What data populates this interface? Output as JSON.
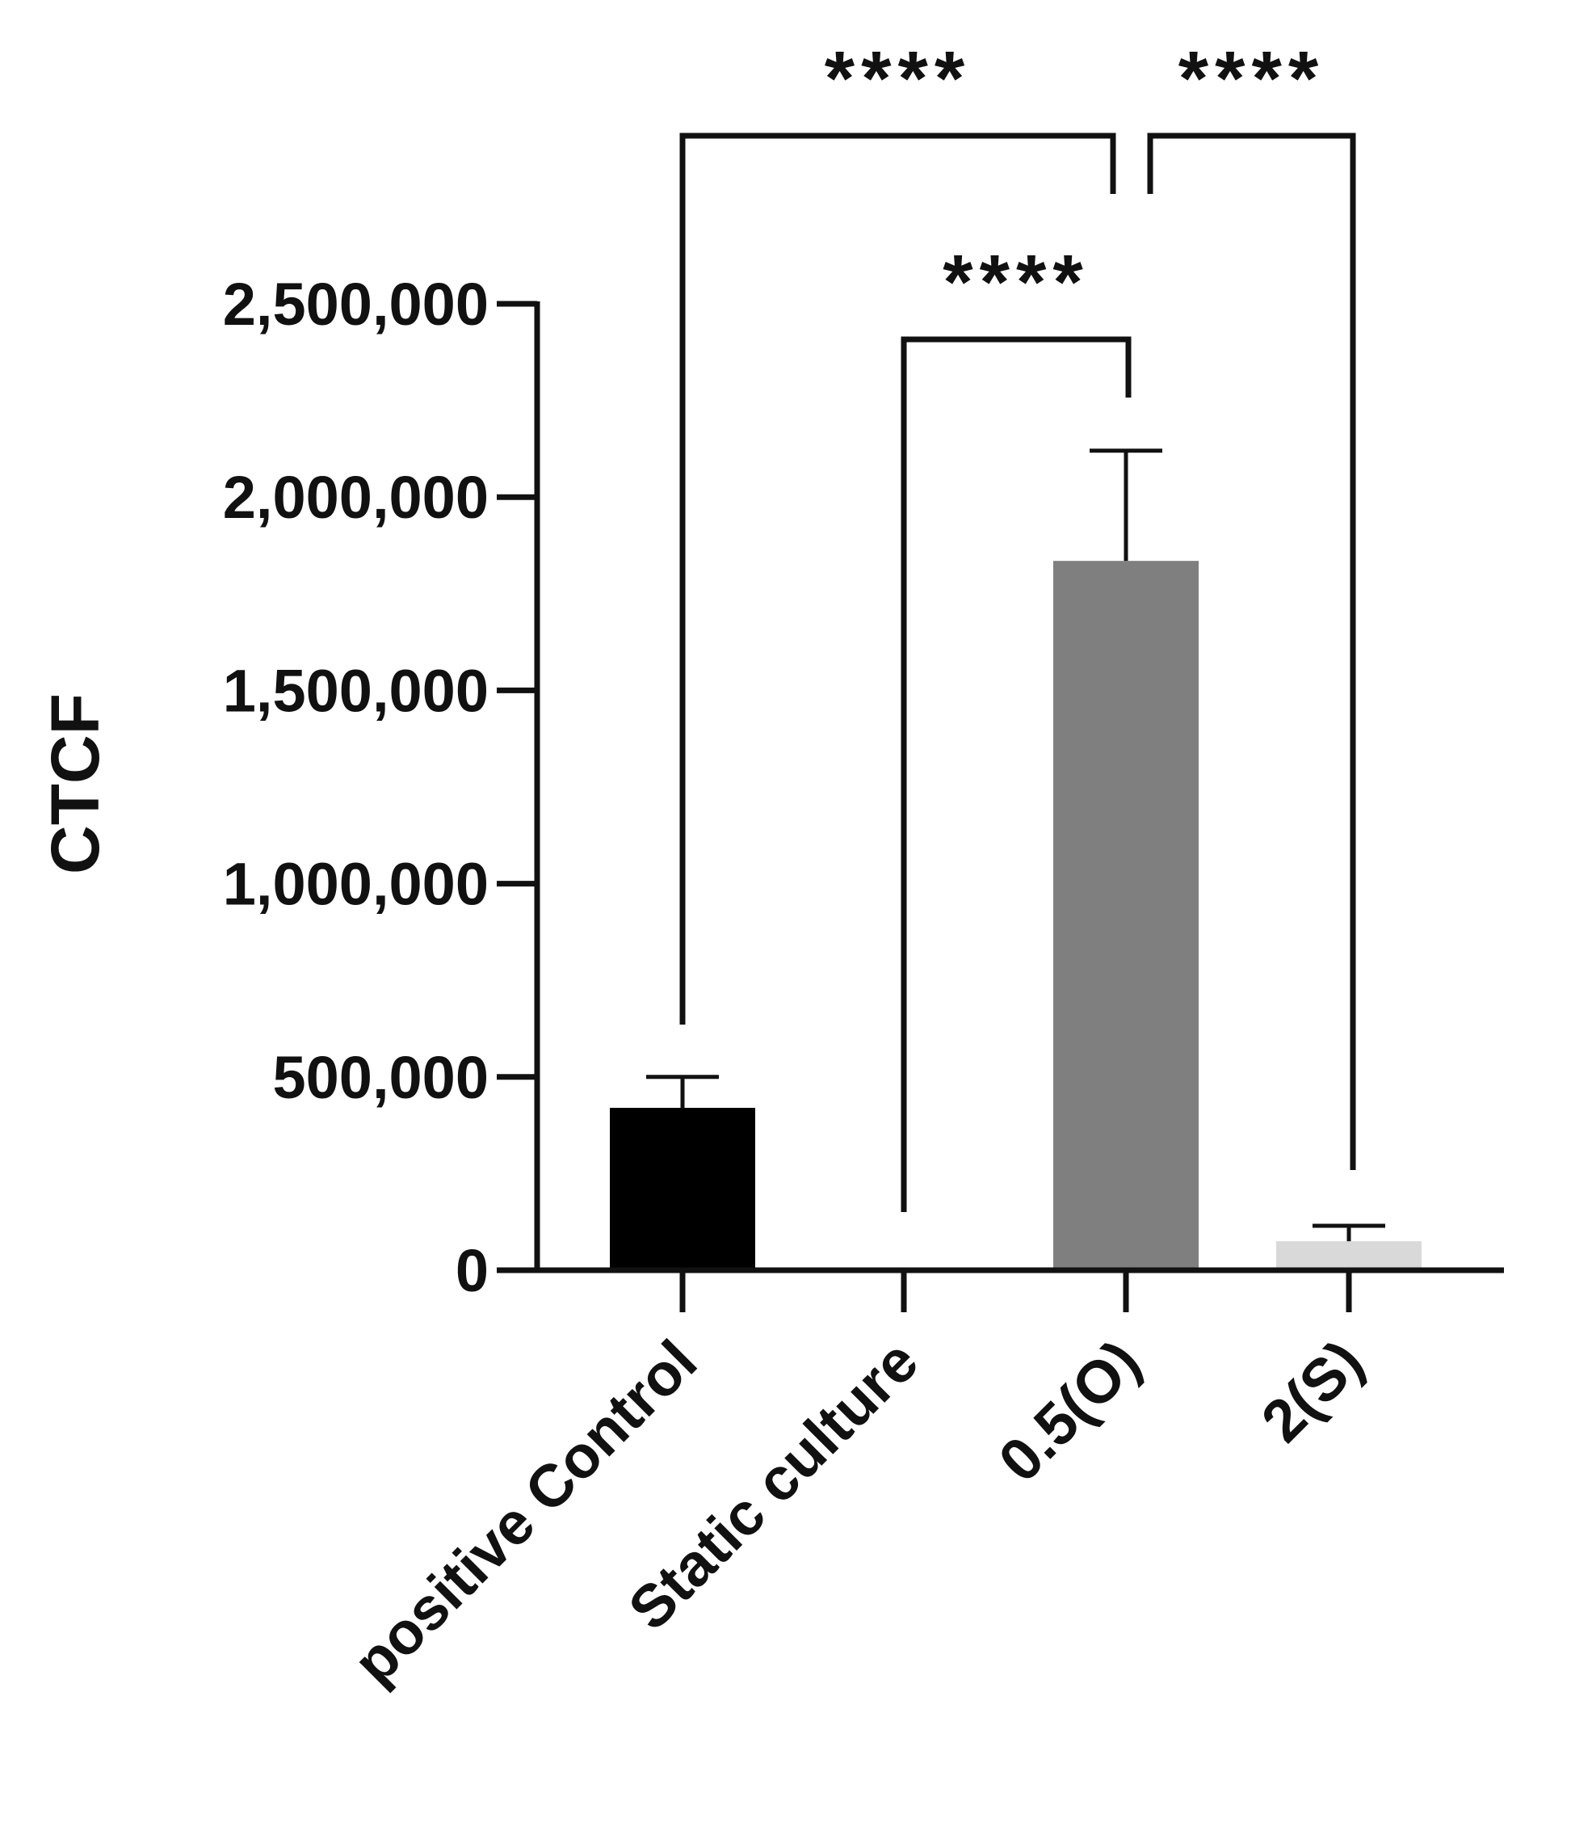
{
  "chart_data": {
    "type": "bar",
    "ylabel": "CTCF",
    "xlabel": "",
    "ylim": [
      0,
      2500000
    ],
    "yticks": [
      {
        "value": 0,
        "label": "0"
      },
      {
        "value": 500000,
        "label": "500,000"
      },
      {
        "value": 1000000,
        "label": "1,000,000"
      },
      {
        "value": 1500000,
        "label": "1,500,000"
      },
      {
        "value": 2000000,
        "label": "2,000,000"
      },
      {
        "value": 2500000,
        "label": "2,500,000"
      }
    ],
    "categories": [
      "positive Control",
      "Static culture",
      "0.5(O)",
      "2(S)"
    ],
    "values": [
      420000,
      0,
      1835000,
      75000
    ],
    "errors": [
      80000,
      0,
      285000,
      40000
    ],
    "colors": [
      "#000000",
      "#ffffff",
      "#7f7f7f",
      "#d9d9d9"
    ],
    "significance": [
      {
        "from": 0,
        "to": 2,
        "label": "****"
      },
      {
        "from": 1,
        "to": 2,
        "label": "****"
      },
      {
        "from": 2,
        "to": 3,
        "label": "****"
      }
    ],
    "grid": false,
    "legend": "none"
  }
}
